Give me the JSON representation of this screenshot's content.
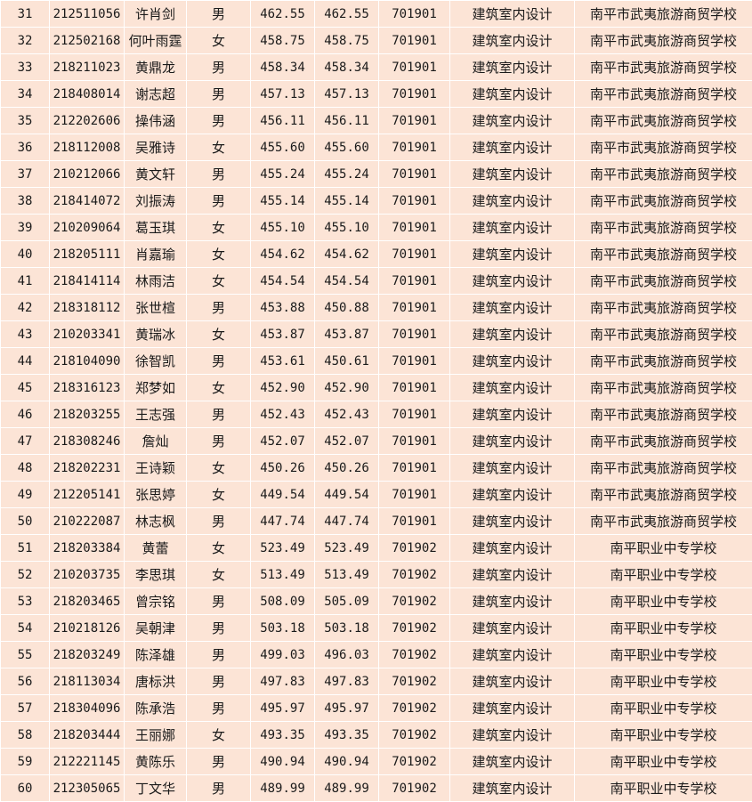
{
  "colors": {
    "cell_background": "#fce4d6",
    "grid_line": "#ffffff"
  },
  "table": {
    "rows": [
      [
        "31",
        "212511056",
        "许肖剑",
        "男",
        "462.55",
        "462.55",
        "701901",
        "建筑室内设计",
        "南平市武夷旅游商贸学校"
      ],
      [
        "32",
        "212502168",
        "何叶雨霆",
        "女",
        "458.75",
        "458.75",
        "701901",
        "建筑室内设计",
        "南平市武夷旅游商贸学校"
      ],
      [
        "33",
        "218211023",
        "黄鼎龙",
        "男",
        "458.34",
        "458.34",
        "701901",
        "建筑室内设计",
        "南平市武夷旅游商贸学校"
      ],
      [
        "34",
        "218408014",
        "谢志超",
        "男",
        "457.13",
        "457.13",
        "701901",
        "建筑室内设计",
        "南平市武夷旅游商贸学校"
      ],
      [
        "35",
        "212202606",
        "操伟涵",
        "男",
        "456.11",
        "456.11",
        "701901",
        "建筑室内设计",
        "南平市武夷旅游商贸学校"
      ],
      [
        "36",
        "218112008",
        "吴雅诗",
        "女",
        "455.60",
        "455.60",
        "701901",
        "建筑室内设计",
        "南平市武夷旅游商贸学校"
      ],
      [
        "37",
        "210212066",
        "黄文轩",
        "男",
        "455.24",
        "455.24",
        "701901",
        "建筑室内设计",
        "南平市武夷旅游商贸学校"
      ],
      [
        "38",
        "218414072",
        "刘振涛",
        "男",
        "455.14",
        "455.14",
        "701901",
        "建筑室内设计",
        "南平市武夷旅游商贸学校"
      ],
      [
        "39",
        "210209064",
        "葛玉琪",
        "女",
        "455.10",
        "455.10",
        "701901",
        "建筑室内设计",
        "南平市武夷旅游商贸学校"
      ],
      [
        "40",
        "218205111",
        "肖嘉瑜",
        "女",
        "454.62",
        "454.62",
        "701901",
        "建筑室内设计",
        "南平市武夷旅游商贸学校"
      ],
      [
        "41",
        "218414114",
        "林雨洁",
        "女",
        "454.54",
        "454.54",
        "701901",
        "建筑室内设计",
        "南平市武夷旅游商贸学校"
      ],
      [
        "42",
        "218318112",
        "张世楦",
        "男",
        "453.88",
        "450.88",
        "701901",
        "建筑室内设计",
        "南平市武夷旅游商贸学校"
      ],
      [
        "43",
        "210203341",
        "黄瑞冰",
        "女",
        "453.87",
        "453.87",
        "701901",
        "建筑室内设计",
        "南平市武夷旅游商贸学校"
      ],
      [
        "44",
        "218104090",
        "徐智凯",
        "男",
        "453.61",
        "450.61",
        "701901",
        "建筑室内设计",
        "南平市武夷旅游商贸学校"
      ],
      [
        "45",
        "218316123",
        "郑梦如",
        "女",
        "452.90",
        "452.90",
        "701901",
        "建筑室内设计",
        "南平市武夷旅游商贸学校"
      ],
      [
        "46",
        "218203255",
        "王志强",
        "男",
        "452.43",
        "452.43",
        "701901",
        "建筑室内设计",
        "南平市武夷旅游商贸学校"
      ],
      [
        "47",
        "218308246",
        "詹灿",
        "男",
        "452.07",
        "452.07",
        "701901",
        "建筑室内设计",
        "南平市武夷旅游商贸学校"
      ],
      [
        "48",
        "218202231",
        "王诗颖",
        "女",
        "450.26",
        "450.26",
        "701901",
        "建筑室内设计",
        "南平市武夷旅游商贸学校"
      ],
      [
        "49",
        "212205141",
        "张思婷",
        "女",
        "449.54",
        "449.54",
        "701901",
        "建筑室内设计",
        "南平市武夷旅游商贸学校"
      ],
      [
        "50",
        "210222087",
        "林志枫",
        "男",
        "447.74",
        "447.74",
        "701901",
        "建筑室内设计",
        "南平市武夷旅游商贸学校"
      ],
      [
        "51",
        "218203384",
        "黄蕾",
        "女",
        "523.49",
        "523.49",
        "701902",
        "建筑室内设计",
        "南平职业中专学校"
      ],
      [
        "52",
        "210203735",
        "李思琪",
        "女",
        "513.49",
        "513.49",
        "701902",
        "建筑室内设计",
        "南平职业中专学校"
      ],
      [
        "53",
        "218203465",
        "曾宗铭",
        "男",
        "508.09",
        "505.09",
        "701902",
        "建筑室内设计",
        "南平职业中专学校"
      ],
      [
        "54",
        "210218126",
        "吴朝津",
        "男",
        "503.18",
        "503.18",
        "701902",
        "建筑室内设计",
        "南平职业中专学校"
      ],
      [
        "55",
        "218203249",
        "陈泽雄",
        "男",
        "499.03",
        "496.03",
        "701902",
        "建筑室内设计",
        "南平职业中专学校"
      ],
      [
        "56",
        "218113034",
        "唐标洪",
        "男",
        "497.83",
        "497.83",
        "701902",
        "建筑室内设计",
        "南平职业中专学校"
      ],
      [
        "57",
        "218304096",
        "陈承浩",
        "男",
        "495.97",
        "495.97",
        "701902",
        "建筑室内设计",
        "南平职业中专学校"
      ],
      [
        "58",
        "218203444",
        "王丽娜",
        "女",
        "493.35",
        "493.35",
        "701902",
        "建筑室内设计",
        "南平职业中专学校"
      ],
      [
        "59",
        "212221145",
        "黄陈乐",
        "男",
        "490.94",
        "490.94",
        "701902",
        "建筑室内设计",
        "南平职业中专学校"
      ],
      [
        "60",
        "212305065",
        "丁文华",
        "男",
        "489.99",
        "489.99",
        "701902",
        "建筑室内设计",
        "南平职业中专学校"
      ]
    ]
  }
}
